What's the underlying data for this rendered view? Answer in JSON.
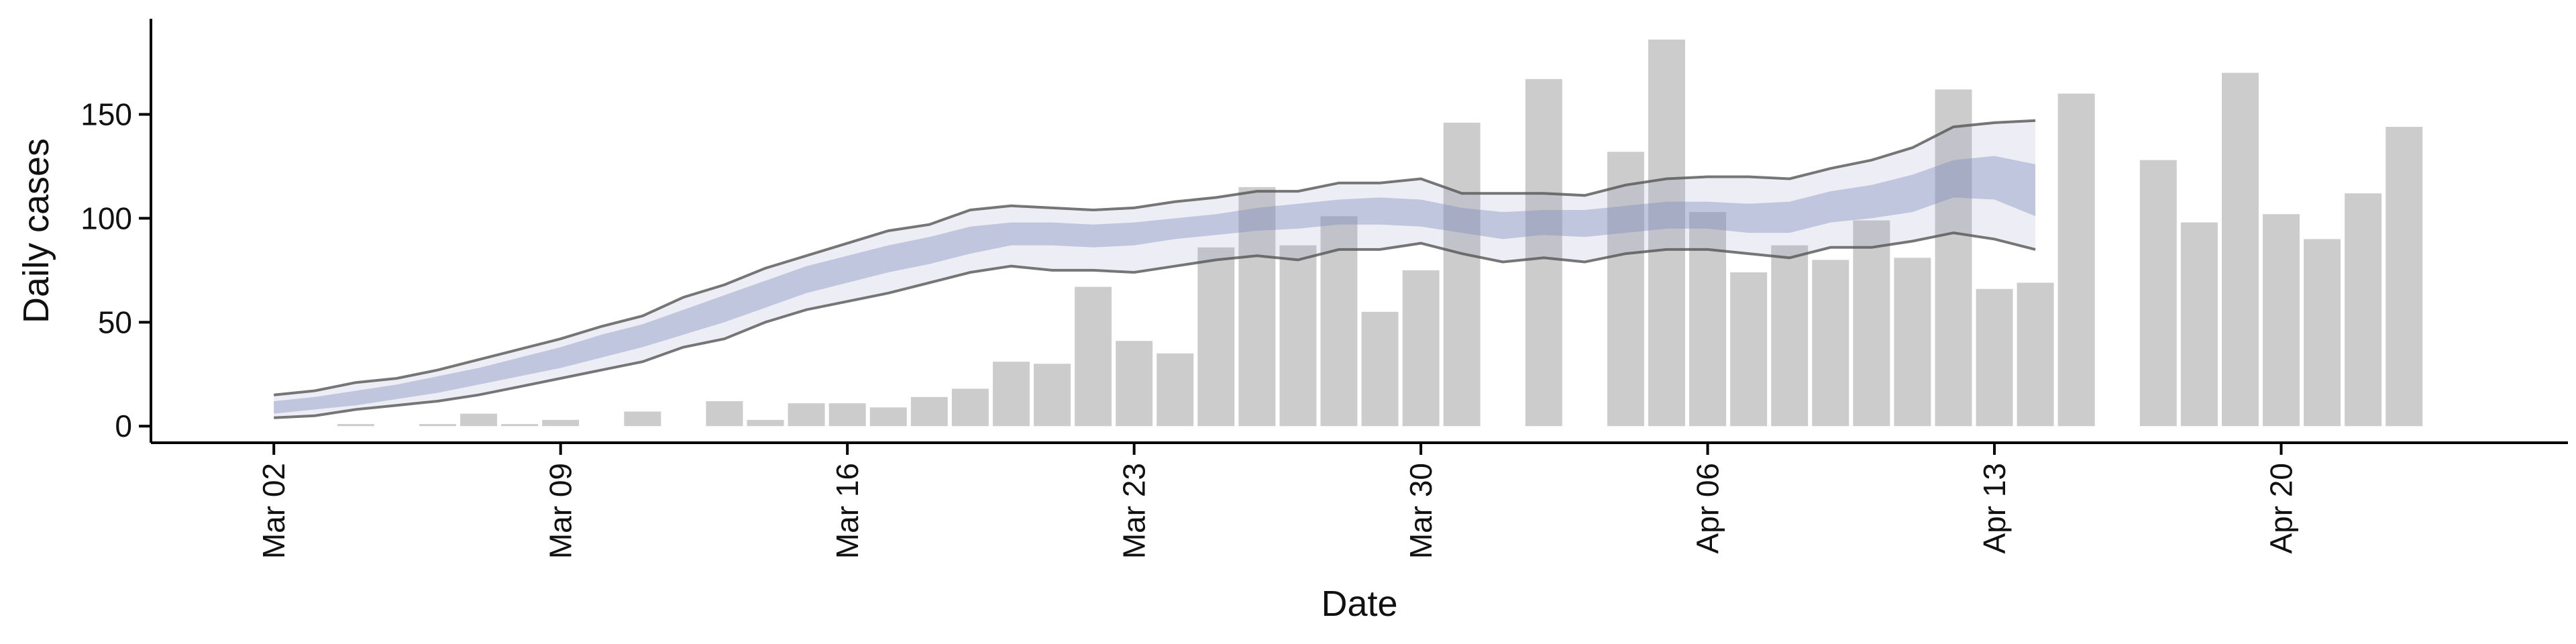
{
  "chart_data": {
    "type": "bar",
    "title": "",
    "xlabel": "Date",
    "ylabel": "Daily cases",
    "ylim": [
      -8,
      196
    ],
    "xlim": [
      "2020-02-28",
      "2020-04-27"
    ],
    "grid": false,
    "legend": "none",
    "x_ticks": [
      {
        "date": "2020-03-02",
        "label": "Mar 02"
      },
      {
        "date": "2020-03-09",
        "label": "Mar 09"
      },
      {
        "date": "2020-03-16",
        "label": "Mar 16"
      },
      {
        "date": "2020-03-23",
        "label": "Mar 23"
      },
      {
        "date": "2020-03-30",
        "label": "Mar 30"
      },
      {
        "date": "2020-04-06",
        "label": "Apr 06"
      },
      {
        "date": "2020-04-13",
        "label": "Apr 13"
      },
      {
        "date": "2020-04-20",
        "label": "Apr 20"
      }
    ],
    "y_ticks": [
      0,
      50,
      100,
      150
    ],
    "bars": {
      "color": "#cccccc",
      "dates": [
        "2020-03-02",
        "2020-03-03",
        "2020-03-04",
        "2020-03-05",
        "2020-03-06",
        "2020-03-07",
        "2020-03-08",
        "2020-03-09",
        "2020-03-10",
        "2020-03-11",
        "2020-03-12",
        "2020-03-13",
        "2020-03-14",
        "2020-03-15",
        "2020-03-16",
        "2020-03-17",
        "2020-03-18",
        "2020-03-19",
        "2020-03-20",
        "2020-03-21",
        "2020-03-22",
        "2020-03-23",
        "2020-03-24",
        "2020-03-25",
        "2020-03-26",
        "2020-03-27",
        "2020-03-28",
        "2020-03-29",
        "2020-03-30",
        "2020-03-31",
        "2020-04-01",
        "2020-04-02",
        "2020-04-03",
        "2020-04-04",
        "2020-04-05",
        "2020-04-06",
        "2020-04-07",
        "2020-04-08",
        "2020-04-09",
        "2020-04-10",
        "2020-04-11",
        "2020-04-12",
        "2020-04-13",
        "2020-04-14",
        "2020-04-15",
        "2020-04-16",
        "2020-04-17",
        "2020-04-18",
        "2020-04-19",
        "2020-04-20",
        "2020-04-21",
        "2020-04-22",
        "2020-04-23"
      ],
      "values": [
        0,
        0,
        1,
        0,
        1,
        6,
        1,
        3,
        0,
        7,
        0,
        12,
        3,
        11,
        11,
        9,
        14,
        18,
        31,
        30,
        67,
        41,
        35,
        86,
        115,
        87,
        101,
        55,
        75,
        146,
        0,
        167,
        0,
        132,
        186,
        103,
        74,
        87,
        80,
        99,
        81,
        162,
        66,
        69,
        160,
        0,
        128,
        98,
        170,
        102,
        90,
        112,
        144
      ]
    },
    "band": {
      "dates": [
        "2020-03-02",
        "2020-03-03",
        "2020-03-04",
        "2020-03-05",
        "2020-03-06",
        "2020-03-07",
        "2020-03-08",
        "2020-03-09",
        "2020-03-10",
        "2020-03-11",
        "2020-03-12",
        "2020-03-13",
        "2020-03-14",
        "2020-03-15",
        "2020-03-16",
        "2020-03-17",
        "2020-03-18",
        "2020-03-19",
        "2020-03-20",
        "2020-03-21",
        "2020-03-22",
        "2020-03-23",
        "2020-03-24",
        "2020-03-25",
        "2020-03-26",
        "2020-03-27",
        "2020-03-28",
        "2020-03-29",
        "2020-03-30",
        "2020-03-31",
        "2020-04-01",
        "2020-04-02",
        "2020-04-03",
        "2020-04-04",
        "2020-04-05",
        "2020-04-06",
        "2020-04-07",
        "2020-04-08",
        "2020-04-09",
        "2020-04-10",
        "2020-04-11",
        "2020-04-12",
        "2020-04-13",
        "2020-04-14"
      ],
      "outer_upper": [
        15,
        17,
        21,
        23,
        27,
        32,
        37,
        42,
        48,
        53,
        62,
        68,
        76,
        82,
        88,
        94,
        97,
        104,
        106,
        105,
        104,
        105,
        108,
        110,
        113,
        113,
        117,
        117,
        119,
        112,
        112,
        112,
        111,
        116,
        119,
        120,
        120,
        119,
        124,
        128,
        134,
        144,
        146,
        147
      ],
      "outer_lower": [
        4,
        5,
        8,
        10,
        12,
        15,
        19,
        23,
        27,
        31,
        38,
        42,
        50,
        56,
        60,
        64,
        69,
        74,
        77,
        75,
        75,
        74,
        77,
        80,
        82,
        80,
        85,
        85,
        88,
        83,
        79,
        81,
        79,
        83,
        85,
        85,
        83,
        81,
        86,
        86,
        89,
        93,
        90,
        85
      ],
      "inner_upper": [
        12,
        14,
        17,
        20,
        24,
        28,
        33,
        38,
        44,
        49,
        56,
        63,
        70,
        77,
        82,
        87,
        91,
        96,
        98,
        98,
        97,
        98,
        100,
        102,
        105,
        107,
        109,
        110,
        109,
        105,
        103,
        104,
        104,
        106,
        108,
        108,
        107,
        108,
        113,
        116,
        121,
        128,
        130,
        126
      ],
      "inner_lower": [
        6,
        8,
        10,
        13,
        16,
        20,
        24,
        28,
        33,
        38,
        44,
        50,
        57,
        64,
        69,
        74,
        78,
        83,
        87,
        87,
        86,
        87,
        90,
        92,
        94,
        95,
        97,
        97,
        96,
        93,
        90,
        92,
        91,
        93,
        95,
        95,
        93,
        93,
        98,
        100,
        103,
        110,
        109,
        101
      ],
      "outer_color": "#8f95c0",
      "inner_color": "#7c8ab8",
      "edge_color": "#555555"
    }
  }
}
